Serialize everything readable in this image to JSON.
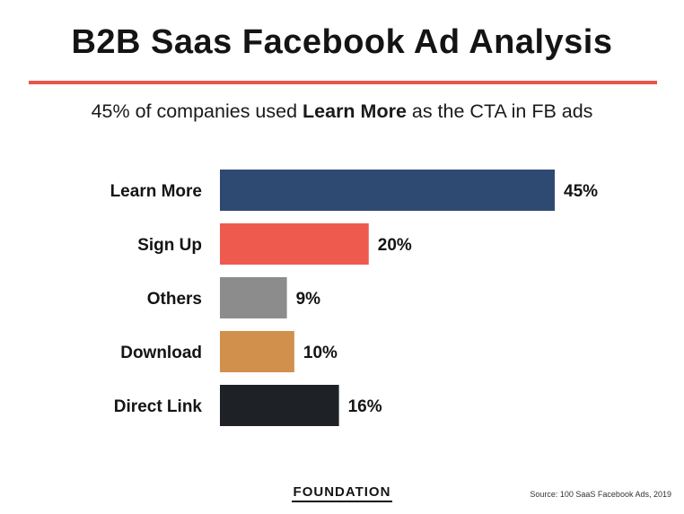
{
  "header": {
    "title": "B2B Saas Facebook Ad Analysis",
    "subtitle_pre": "45% of companies used ",
    "subtitle_bold": "Learn More",
    "subtitle_post": " as the CTA in FB ads"
  },
  "chart_data": {
    "type": "bar",
    "orientation": "horizontal",
    "categories": [
      "Learn More",
      "Sign Up",
      "Others",
      "Download",
      "Direct Link"
    ],
    "values": [
      45,
      20,
      9,
      10,
      16
    ],
    "value_labels": [
      "45%",
      "20%",
      "9%",
      "10%",
      "16%"
    ],
    "colors": [
      "#2f4a72",
      "#ef5a4f",
      "#8c8c8c",
      "#d2904d",
      "#1e2226"
    ],
    "xlim": [
      0,
      45
    ],
    "grid": false,
    "legend": "none"
  },
  "footer": {
    "logo": "FOUNDATION",
    "source": "Source: 100 SaaS Facebook Ads, 2019"
  }
}
